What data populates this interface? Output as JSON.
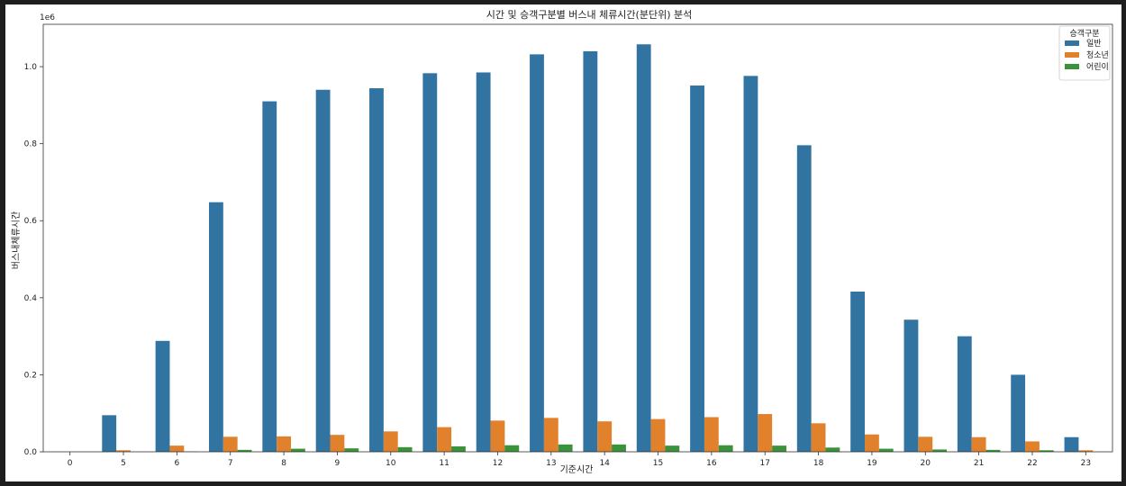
{
  "chart_data": {
    "type": "bar",
    "title": "시간 및 승객구분별 버스내 체류시간(분단위) 분석",
    "xlabel": "기준시간",
    "ylabel": "버스내체류시간",
    "offset_label": "1e6",
    "ylim": [
      0,
      1.11
    ],
    "y_scale_multiplier": 1000000,
    "y_ticks": [
      0.0,
      0.2,
      0.4,
      0.6,
      0.8,
      1.0
    ],
    "y_tick_labels": [
      "0.0",
      "0.2",
      "0.4",
      "0.6",
      "0.8",
      "1.0"
    ],
    "grid": false,
    "legend": {
      "title": "승객구분",
      "placement": "top-right"
    },
    "categories": [
      "0",
      "5",
      "6",
      "7",
      "8",
      "9",
      "10",
      "11",
      "12",
      "13",
      "14",
      "15",
      "16",
      "17",
      "18",
      "19",
      "20",
      "21",
      "22",
      "23"
    ],
    "series": [
      {
        "name": "일반",
        "color": "#3274a1",
        "values": [
          0.0,
          0.095,
          0.288,
          0.648,
          0.91,
          0.94,
          0.944,
          0.983,
          0.985,
          1.032,
          1.04,
          1.058,
          0.951,
          0.976,
          0.796,
          0.416,
          0.343,
          0.3,
          0.2,
          0.038
        ]
      },
      {
        "name": "청소년",
        "color": "#e1812c",
        "values": [
          0.0,
          0.004,
          0.016,
          0.039,
          0.04,
          0.044,
          0.053,
          0.064,
          0.081,
          0.088,
          0.079,
          0.085,
          0.09,
          0.098,
          0.074,
          0.045,
          0.039,
          0.038,
          0.027,
          0.004
        ]
      },
      {
        "name": "어린이",
        "color": "#3a923a",
        "values": [
          0.0,
          0.0,
          0.001,
          0.005,
          0.008,
          0.009,
          0.012,
          0.014,
          0.017,
          0.019,
          0.019,
          0.016,
          0.017,
          0.016,
          0.011,
          0.008,
          0.006,
          0.005,
          0.004,
          0.0
        ]
      }
    ]
  }
}
